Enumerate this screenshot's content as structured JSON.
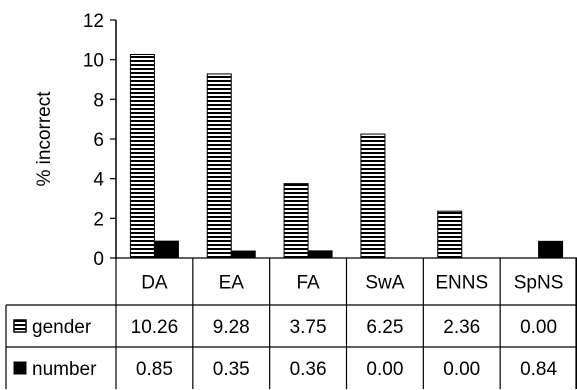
{
  "chart_data": {
    "type": "bar",
    "title": "",
    "xlabel": "",
    "ylabel": "% incorrect",
    "ylim": [
      0,
      12
    ],
    "yticks": [
      "0",
      "2",
      "4",
      "6",
      "8",
      "10",
      "12"
    ],
    "grid": false,
    "legend": "data-table-left",
    "categories": [
      "DA",
      "EA",
      "FA",
      "SwA",
      "ENNS",
      "SpNS"
    ],
    "series": [
      {
        "name": "gender",
        "values": [
          10.26,
          9.28,
          3.75,
          6.25,
          2.36,
          0.0
        ],
        "labels": [
          "10.26",
          "9.28",
          "3.75",
          "6.25",
          "2.36",
          "0.00"
        ],
        "pattern": "horizontal-stripes",
        "color": "#000000"
      },
      {
        "name": "number",
        "values": [
          0.85,
          0.35,
          0.36,
          0.0,
          0.0,
          0.84
        ],
        "labels": [
          "0.85",
          "0.35",
          "0.36",
          "0.00",
          "0.00",
          "0.84"
        ],
        "pattern": "solid",
        "color": "#000000"
      }
    ]
  }
}
